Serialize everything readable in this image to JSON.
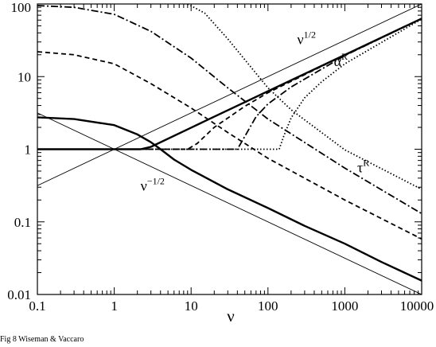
{
  "caption": "Fig 8 Wiseman & Vaccaro",
  "chart_data": {
    "type": "line",
    "title": "",
    "xlabel": "ν",
    "ylabel": "",
    "xscale": "log",
    "yscale": "log",
    "xlim": [
      0.1,
      10000
    ],
    "ylim": [
      0.01,
      100
    ],
    "grid": false,
    "legend": "none",
    "x_ticks": [
      {
        "value": 0.1,
        "label": "0.1"
      },
      {
        "value": 1,
        "label": "1"
      },
      {
        "value": 10,
        "label": "10"
      },
      {
        "value": 100,
        "label": "100"
      },
      {
        "value": 1000,
        "label": "1000"
      },
      {
        "value": 10000,
        "label": "10000"
      }
    ],
    "y_ticks": [
      {
        "value": 0.01,
        "label": "0.01"
      },
      {
        "value": 0.1,
        "label": "0.1"
      },
      {
        "value": 1,
        "label": "1"
      },
      {
        "value": 10,
        "label": "10"
      },
      {
        "value": 100,
        "label": "100"
      }
    ],
    "annotations": [
      {
        "base": "ν",
        "sup": "1/2",
        "x": 240,
        "y": 28
      },
      {
        "base": "α",
        "sup": "R",
        "x": 720,
        "y": 14
      },
      {
        "base": "τ",
        "sup": "R",
        "x": 1450,
        "y": 0.48
      },
      {
        "base": "ν",
        "sup": "−1/2",
        "x": 2.2,
        "y": 0.27
      }
    ],
    "series": [
      {
        "style": "thin-solid",
        "x": [
          0.1,
          10000
        ],
        "y": [
          0.316,
          100
        ]
      },
      {
        "style": "thin-solid",
        "x": [
          0.1,
          10000
        ],
        "y": [
          3.16,
          0.01
        ]
      },
      {
        "style": "thick-solid",
        "x": [
          0.1,
          2.2,
          3,
          10,
          100,
          1000,
          10000
        ],
        "y": [
          1,
          1,
          1.08,
          1.98,
          6.29,
          19.9,
          63
        ]
      },
      {
        "style": "thick-solid",
        "x": [
          0.1,
          0.3,
          1,
          2,
          3,
          4,
          6,
          10,
          30,
          100,
          300,
          1000,
          3000,
          10000
        ],
        "y": [
          2.75,
          2.6,
          2.15,
          1.6,
          1.25,
          1.0,
          0.72,
          0.52,
          0.28,
          0.155,
          0.088,
          0.05,
          0.028,
          0.0155
        ]
      },
      {
        "style": "dashed",
        "x": [
          0.1,
          9,
          12,
          20,
          50,
          100,
          1000,
          10000
        ],
        "y": [
          1,
          1,
          1.2,
          2.0,
          3.9,
          6.0,
          19.9,
          63
        ]
      },
      {
        "style": "dash-dot",
        "x": [
          0.1,
          40,
          50,
          70,
          100,
          200,
          1000,
          10000
        ],
        "y": [
          1,
          1,
          1.5,
          2.8,
          4.2,
          7.2,
          19.5,
          63
        ]
      },
      {
        "style": "dotted",
        "x": [
          0.1,
          140,
          160,
          200,
          300,
          500,
          1000,
          10000
        ],
        "y": [
          1,
          1,
          1.5,
          2.7,
          5.1,
          8.5,
          15,
          62
        ]
      },
      {
        "style": "dashed",
        "x": [
          0.1,
          0.3,
          1,
          3,
          10,
          30,
          100,
          1000,
          10000
        ],
        "y": [
          22,
          20,
          15,
          8,
          3.7,
          1.7,
          0.75,
          0.2,
          0.058
        ]
      },
      {
        "style": "dash-dot",
        "x": [
          0.1,
          0.3,
          1,
          3,
          10,
          30,
          100,
          1000,
          10000
        ],
        "y": [
          95,
          90,
          72,
          42,
          18,
          7,
          2.6,
          0.55,
          0.13
        ]
      },
      {
        "style": "dotted",
        "x": [
          9,
          15,
          30,
          100,
          200,
          1000,
          10000
        ],
        "y": [
          100,
          75,
          33,
          7,
          3.5,
          0.98,
          0.28
        ]
      }
    ]
  }
}
